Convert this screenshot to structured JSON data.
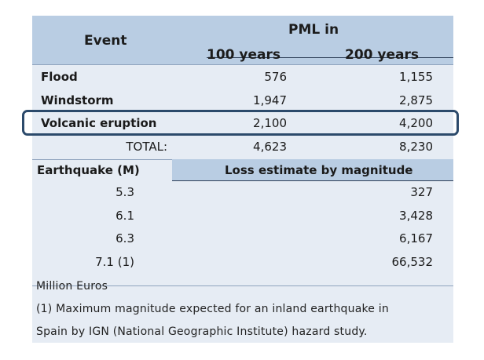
{
  "header": {
    "event_label": "Event",
    "pml_label": "PML in",
    "col_100": "100 years",
    "col_200": "200 years"
  },
  "rows": [
    {
      "event": "Flood",
      "v100": "576",
      "v200": "1,155"
    },
    {
      "event": "Windstorm",
      "v100": "1,947",
      "v200": "2,875"
    },
    {
      "event": "Volcanic eruption",
      "v100": "2,100",
      "v200": "4,200"
    }
  ],
  "total": {
    "label": "TOTAL:",
    "v100": "4,623",
    "v200": "8,230"
  },
  "earthquake": {
    "label": "Earthquake (M)",
    "loss_header": "Loss estimate by magnitude",
    "rows": [
      {
        "magnitude": "5.3",
        "loss": "327"
      },
      {
        "magnitude": "6.1",
        "loss": "3,428"
      },
      {
        "magnitude": "6.3",
        "loss": "6,167"
      },
      {
        "magnitude": "7.1 (1)",
        "loss": "66,532"
      }
    ]
  },
  "notes": {
    "units": "Million Euros",
    "footnote_line1": "(1) Maximum magnitude expected for an inland earthquake in",
    "footnote_line2": "Spain by IGN (National Geographic Institute) hazard study."
  },
  "colors": {
    "header_band": "#b9cde3",
    "body": "#e6ecf4",
    "highlight_border": "#2c4a6b"
  }
}
